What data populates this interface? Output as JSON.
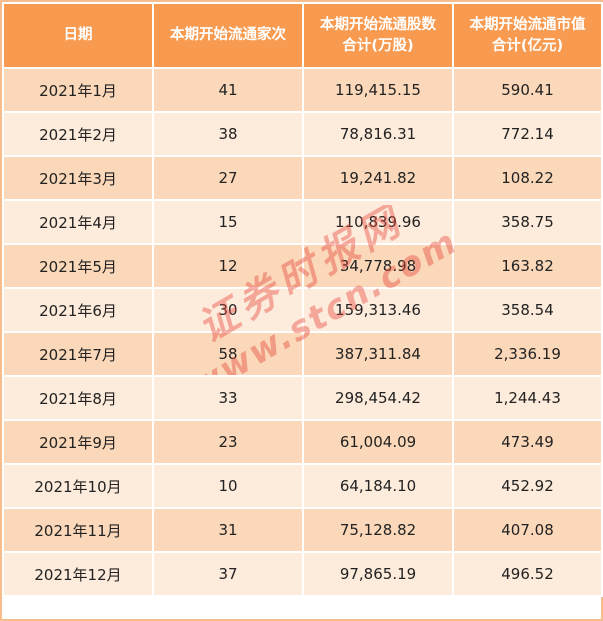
{
  "table": {
    "headers": [
      [
        "日期"
      ],
      [
        "本期开始流通家次"
      ],
      [
        "本期开始流通股数",
        "合计(万股)"
      ],
      [
        "本期开始流通市值",
        "合计(亿元)"
      ]
    ],
    "rows": [
      [
        "2021年1月",
        "41",
        "119,415.15",
        "590.41"
      ],
      [
        "2021年2月",
        "38",
        "78,816.31",
        "772.14"
      ],
      [
        "2021年3月",
        "27",
        "19,241.82",
        "108.22"
      ],
      [
        "2021年4月",
        "15",
        "110,839.96",
        "358.75"
      ],
      [
        "2021年5月",
        "12",
        "34,778.98",
        "163.82"
      ],
      [
        "2021年6月",
        "30",
        "159,313.46",
        "358.54"
      ],
      [
        "2021年7月",
        "58",
        "387,311.84",
        "2,336.19"
      ],
      [
        "2021年8月",
        "33",
        "298,454.42",
        "1,244.43"
      ],
      [
        "2021年9月",
        "23",
        "61,004.09",
        "473.49"
      ],
      [
        "2021年10月",
        "10",
        "64,184.10",
        "452.92"
      ],
      [
        "2021年11月",
        "31",
        "75,128.82",
        "407.08"
      ],
      [
        "2021年12月",
        "37",
        "97,865.19",
        "496.52"
      ]
    ]
  },
  "watermark": {
    "line1": "证券时报网",
    "line2": "www.stcn.com",
    "color": "#e8493d"
  },
  "colors": {
    "header_bg": "#f89b51",
    "row_odd": "#fbd8b9",
    "row_even": "#fdebdc",
    "border": "#f7bd8d"
  }
}
